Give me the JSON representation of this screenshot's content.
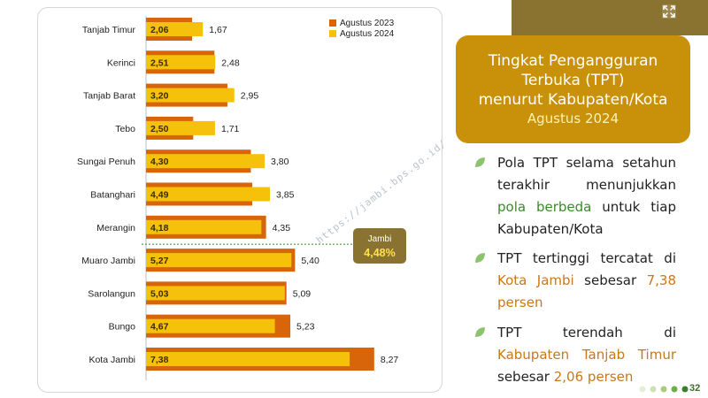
{
  "title": {
    "line1": "Tingkat Pengangguran",
    "line2": "Terbuka (TPT)",
    "line3": "menurut Kabupaten/Kota",
    "subtitle": "Agustus 2024"
  },
  "bullets": [
    {
      "parts": [
        {
          "text": "Pola TPT selama setahun terakhir menunjukkan ",
          "style": ""
        },
        {
          "text": "pola berbeda",
          "style": "green"
        },
        {
          "text": " untuk tiap Kabupaten/Kota",
          "style": ""
        }
      ]
    },
    {
      "parts": [
        {
          "text": "TPT tertinggi tercatat di ",
          "style": ""
        },
        {
          "text": "Kota Jambi",
          "style": "orange"
        },
        {
          "text": " sebesar ",
          "style": ""
        },
        {
          "text": "7,38 persen",
          "style": "orange"
        }
      ]
    },
    {
      "parts": [
        {
          "text": "TPT terendah di ",
          "style": ""
        },
        {
          "text": "Kabupaten Tanjab Timur",
          "style": "orange"
        },
        {
          "text": " sebesar ",
          "style": ""
        },
        {
          "text": "2,06 persen",
          "style": "orange"
        }
      ]
    }
  ],
  "page_number": "32",
  "watermark": "https://jambi.bps.go.id/",
  "colors": {
    "series_2023": "#d9650b",
    "series_2024": "#f5c10a",
    "title_bg": "#c9900a",
    "callout_bg": "#8a7330",
    "accent_green": "#3a8a2a",
    "accent_orange": "#c7781a"
  },
  "chart_data": {
    "type": "bar",
    "orientation": "horizontal",
    "categories": [
      "Tanjab Timur",
      "Kerinci",
      "Tanjab Barat",
      "Tebo",
      "Sungai Penuh",
      "Batanghari",
      "Merangin",
      "Muaro Jambi",
      "Sarolangun",
      "Bungo",
      "Kota Jambi"
    ],
    "series": [
      {
        "name": "Agustus 2023",
        "values": [
          1.67,
          2.48,
          2.95,
          1.71,
          3.8,
          3.85,
          4.35,
          5.4,
          5.09,
          5.23,
          8.27
        ],
        "labels": [
          "1,67",
          "2,48",
          "2,95",
          "1,71",
          "3,80",
          "3,85",
          "4,35",
          "5,40",
          "5,09",
          "5,23",
          "8,27"
        ]
      },
      {
        "name": "Agustus 2024",
        "values": [
          2.06,
          2.51,
          3.2,
          2.5,
          4.3,
          4.49,
          4.18,
          5.27,
          5.03,
          4.67,
          7.38
        ],
        "labels": [
          "2,06",
          "2,51",
          "3,20",
          "2,50",
          "4,30",
          "4,49",
          "4,18",
          "5,27",
          "5,03",
          "4,67",
          "7,38"
        ]
      }
    ],
    "reference_line": {
      "label": "Jambi",
      "value_label": "4,48%",
      "value": 4.48
    },
    "xlim": [
      0,
      8.5
    ],
    "legend": "top-right",
    "grid": false
  }
}
